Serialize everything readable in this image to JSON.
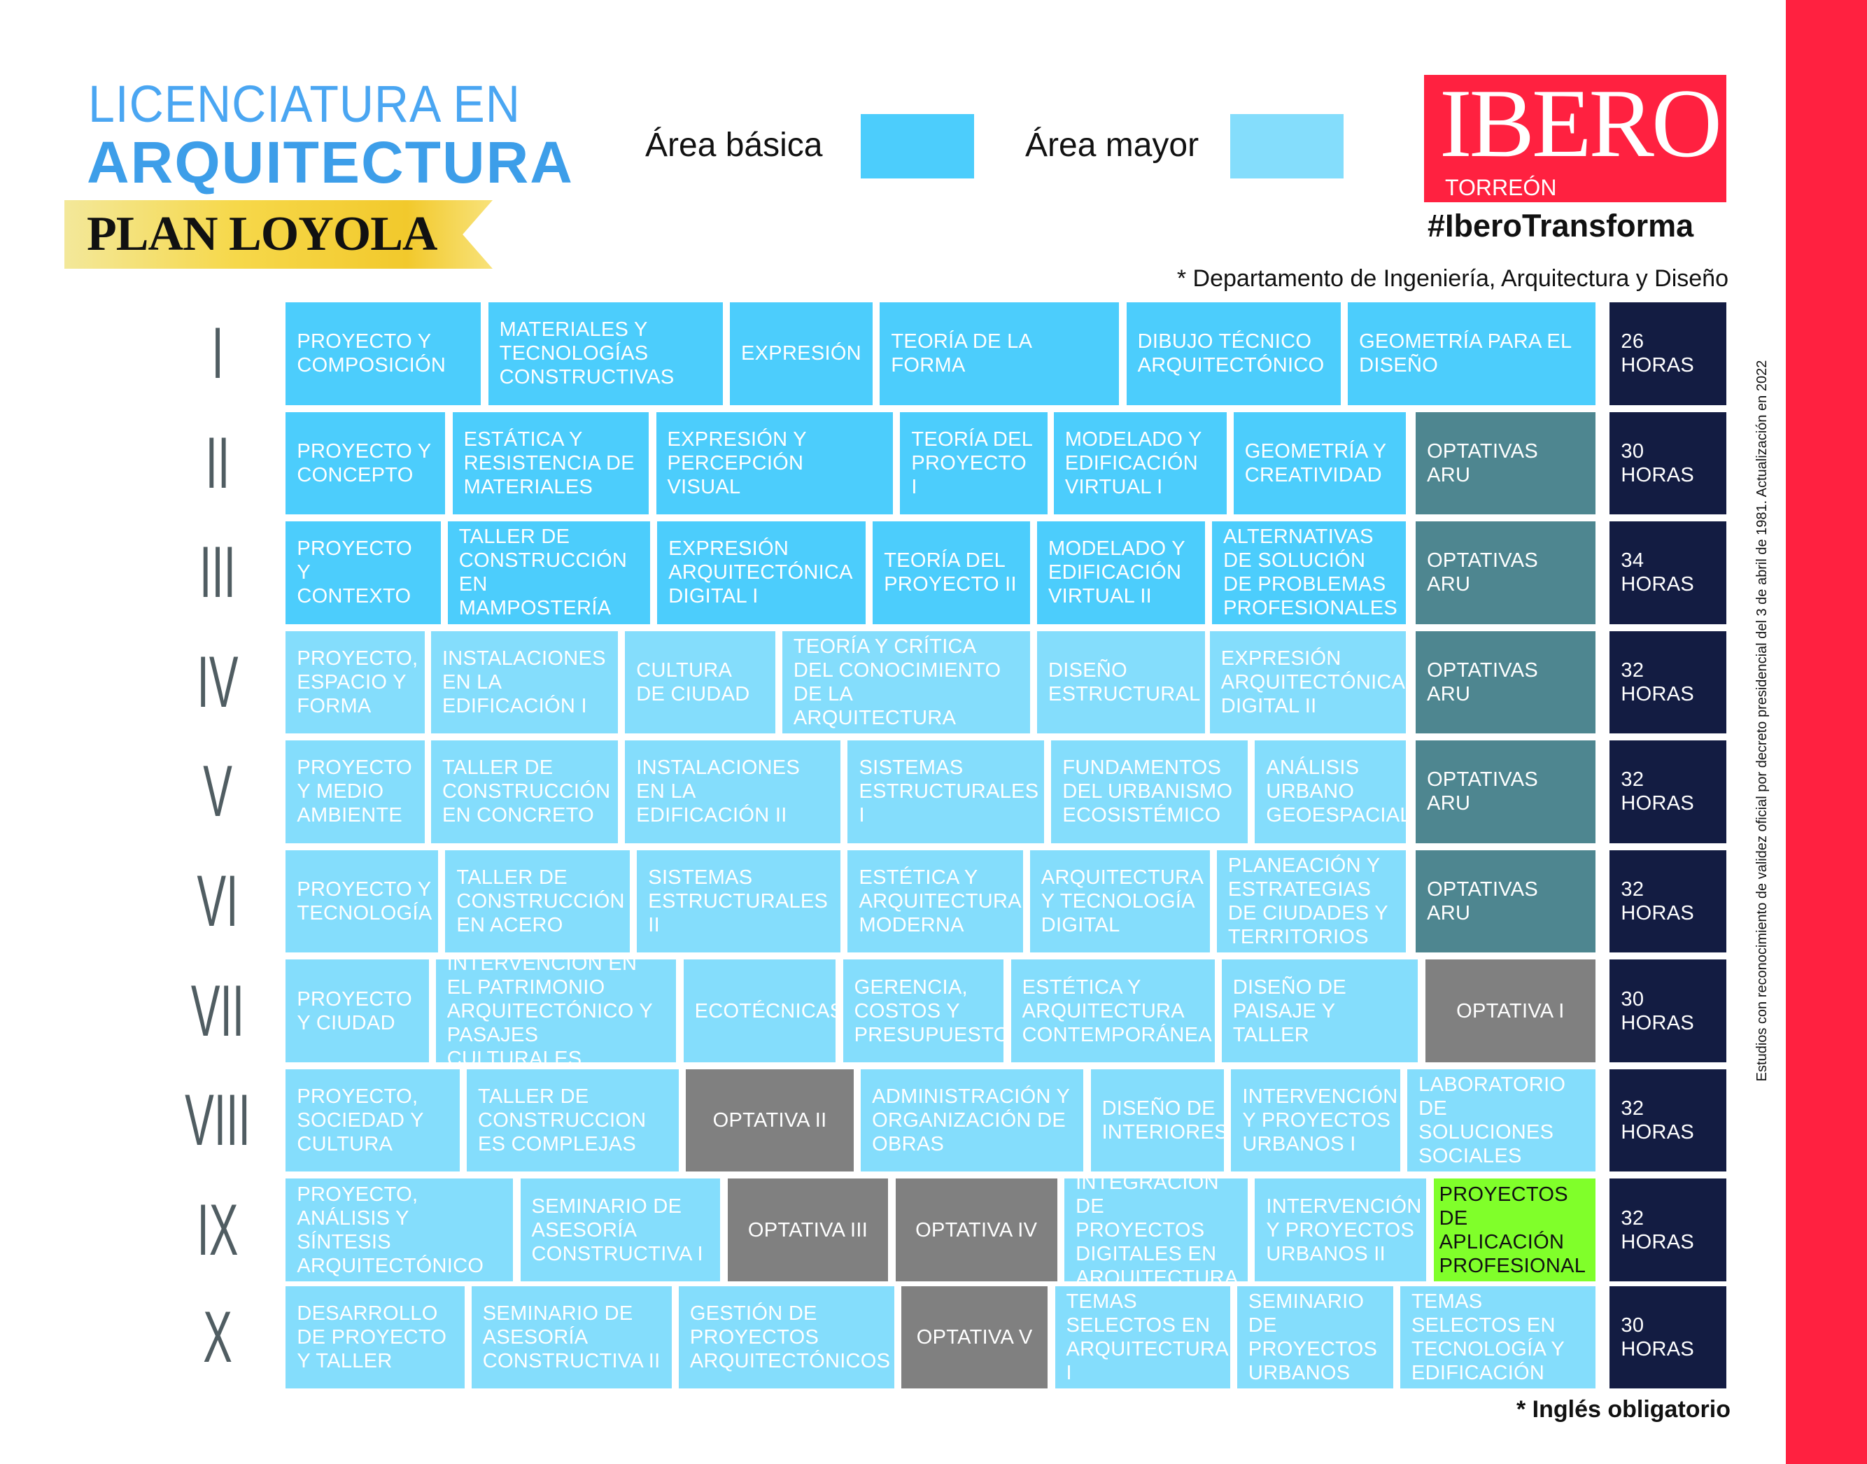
{
  "header": {
    "title_line1": "LICENCIATURA EN",
    "title_line2": "ARQUITECTURA",
    "plan": "PLAN LOYOLA",
    "department_note": "* Departamento de Ingeniería, Arquitectura y Diseño",
    "footer_note": "* Inglés obligatorio",
    "side_note": "Estudios con reconocimiento de validez oficial por decreto presidencial del 3 de abril de 1981. Actualización en 2022"
  },
  "legend": [
    {
      "label": "Área básica",
      "color": "#4ccdfc"
    },
    {
      "label": "Área mayor",
      "color": "#84ddfc"
    }
  ],
  "brand": {
    "name": "IBERO",
    "campus": "TORREÓN",
    "hashtag": "#IberoTransforma",
    "color": "#ff2140"
  },
  "colors": {
    "optativas_aru": "#4e8690",
    "optativa": "#808080",
    "highlight": "#80ff2a",
    "hours": "#131c42"
  },
  "semesters": [
    {
      "numeral": "I",
      "hours": "26 HORAS",
      "courses": [
        {
          "name": "PROYECTO Y COMPOSICIÓN",
          "type": "basic"
        },
        {
          "name": "MATERIALES Y TECNOLOGÍAS CONSTRUCTIVAS",
          "type": "basic"
        },
        {
          "name": "EXPRESIÓN",
          "type": "basic"
        },
        {
          "name": "TEORÍA DE LA FORMA",
          "type": "basic"
        },
        {
          "name": "DIBUJO TÉCNICO ARQUITECTÓNICO",
          "type": "basic"
        },
        {
          "name": "GEOMETRÍA PARA EL DISEÑO",
          "type": "basic"
        }
      ]
    },
    {
      "numeral": "II",
      "hours": "30 HORAS",
      "courses": [
        {
          "name": "PROYECTO Y CONCEPTO",
          "type": "basic"
        },
        {
          "name": "ESTÁTICA Y RESISTENCIA DE MATERIALES",
          "type": "basic"
        },
        {
          "name": "EXPRESIÓN Y PERCEPCIÓN VISUAL",
          "type": "basic"
        },
        {
          "name": "TEORÍA DEL PROYECTO I",
          "type": "basic"
        },
        {
          "name": "MODELADO Y EDIFICACIÓN VIRTUAL I",
          "type": "basic"
        },
        {
          "name": "GEOMETRÍA Y CREATIVIDAD",
          "type": "basic"
        },
        {
          "name": "OPTATIVAS ARU",
          "type": "aru"
        }
      ]
    },
    {
      "numeral": "III",
      "hours": "34 HORAS",
      "courses": [
        {
          "name": "PROYECTO Y CONTEXTO",
          "type": "basic"
        },
        {
          "name": "TALLER DE CONSTRUCCIÓN EN MAMPOSTERÍA",
          "type": "basic"
        },
        {
          "name": "EXPRESIÓN ARQUITECTÓNICA DIGITAL I",
          "type": "basic"
        },
        {
          "name": "TEORÍA DEL PROYECTO II",
          "type": "basic"
        },
        {
          "name": "MODELADO Y EDIFICACIÓN VIRTUAL II",
          "type": "basic"
        },
        {
          "name": "ALTERNATIVAS DE SOLUCIÓN DE PROBLEMAS PROFESIONALES",
          "type": "basic"
        },
        {
          "name": "OPTATIVAS ARU",
          "type": "aru"
        }
      ]
    },
    {
      "numeral": "IV",
      "hours": "32 HORAS",
      "courses": [
        {
          "name": "PROYECTO, ESPACIO Y FORMA",
          "type": "major"
        },
        {
          "name": "INSTALACIONES EN LA EDIFICACIÓN I",
          "type": "major"
        },
        {
          "name": "CULTURA DE CIUDAD",
          "type": "major"
        },
        {
          "name": "TEORÍA Y CRÍTICA DEL CONOCIMIENTO DE LA ARQUITECTURA",
          "type": "major"
        },
        {
          "name": "DISEÑO ESTRUCTURAL",
          "type": "major"
        },
        {
          "name": "EXPRESIÓN ARQUITECTÓNICA DIGITAL II",
          "type": "major"
        },
        {
          "name": "OPTATIVAS ARU",
          "type": "aru"
        }
      ]
    },
    {
      "numeral": "V",
      "hours": "32 HORAS",
      "courses": [
        {
          "name": "PROYECTO Y MEDIO AMBIENTE",
          "type": "major"
        },
        {
          "name": "TALLER DE CONSTRUCCIÓN EN CONCRETO",
          "type": "major"
        },
        {
          "name": "INSTALACIONES EN LA EDIFICACIÓN II",
          "type": "major"
        },
        {
          "name": "SISTEMAS ESTRUCTURALES I",
          "type": "major"
        },
        {
          "name": "FUNDAMENTOS DEL URBANISMO ECOSISTÉMICO",
          "type": "major"
        },
        {
          "name": "ANÁLISIS URBANO GEOESPACIAL",
          "type": "major"
        },
        {
          "name": "OPTATIVAS ARU",
          "type": "aru"
        }
      ]
    },
    {
      "numeral": "VI",
      "hours": "32 HORAS",
      "courses": [
        {
          "name": "PROYECTO Y TECNOLOGÍA",
          "type": "major"
        },
        {
          "name": "TALLER DE CONSTRUCCIÓN EN ACERO",
          "type": "major"
        },
        {
          "name": "SISTEMAS ESTRUCTURALES II",
          "type": "major"
        },
        {
          "name": "ESTÉTICA Y ARQUITECTURA MODERNA",
          "type": "major"
        },
        {
          "name": "ARQUITECTURA Y TECNOLOGÍA DIGITAL",
          "type": "major"
        },
        {
          "name": "PLANEACIÓN Y ESTRATEGIAS DE CIUDADES Y TERRITORIOS",
          "type": "major"
        },
        {
          "name": "OPTATIVAS ARU",
          "type": "aru"
        }
      ]
    },
    {
      "numeral": "VII",
      "hours": "30 HORAS",
      "courses": [
        {
          "name": "PROYECTO Y CIUDAD",
          "type": "major"
        },
        {
          "name": "INTERVENCIÓN EN EL PATRIMONIO ARQUITECTÓNICO Y PASAJES CULTURALES",
          "type": "major"
        },
        {
          "name": "ECOTÉCNICAS",
          "type": "major"
        },
        {
          "name": "GERENCIA, COSTOS Y PRESUPUESTOS",
          "type": "major"
        },
        {
          "name": "ESTÉTICA Y ARQUITECTURA CONTEMPORÁNEA",
          "type": "major"
        },
        {
          "name": "DISEÑO DE PAISAJE Y TALLER",
          "type": "major"
        },
        {
          "name": "OPTATIVA I",
          "type": "opt"
        }
      ]
    },
    {
      "numeral": "VIII",
      "hours": "32 HORAS",
      "courses": [
        {
          "name": "PROYECTO, SOCIEDAD Y CULTURA",
          "type": "major"
        },
        {
          "name": "TALLER DE CONSTRUCCION ES COMPLEJAS",
          "type": "major"
        },
        {
          "name": "OPTATIVA II",
          "type": "opt"
        },
        {
          "name": "ADMINISTRACIÓN Y ORGANIZACIÓN DE OBRAS",
          "type": "major"
        },
        {
          "name": "DISEÑO DE INTERIORES",
          "type": "major"
        },
        {
          "name": "INTERVENCIÓN Y PROYECTOS URBANOS I",
          "type": "major"
        },
        {
          "name": "LABORATORIO DE SOLUCIONES SOCIALES",
          "type": "major"
        }
      ]
    },
    {
      "numeral": "IX",
      "hours": "32 HORAS",
      "courses": [
        {
          "name": "PROYECTO, ANÁLISIS Y SÍNTESIS ARQUITECTÓNICO",
          "type": "major"
        },
        {
          "name": "SEMINARIO DE ASESORÍA CONSTRUCTIVA I",
          "type": "major"
        },
        {
          "name": "OPTATIVA III",
          "type": "opt"
        },
        {
          "name": "OPTATIVA IV",
          "type": "opt"
        },
        {
          "name": "INTEGRACIÓN DE PROYECTOS DIGITALES EN ARQUITECTURA",
          "type": "major"
        },
        {
          "name": "INTERVENCIÓN Y PROYECTOS URBANOS II",
          "type": "major"
        },
        {
          "name": "PROYECTOS DE APLICACIÓN PROFESIONAL",
          "type": "green"
        }
      ]
    },
    {
      "numeral": "X",
      "hours": "30 HORAS",
      "courses": [
        {
          "name": "DESARROLLO DE PROYECTO Y TALLER",
          "type": "major"
        },
        {
          "name": "SEMINARIO DE ASESORÍA CONSTRUCTIVA II",
          "type": "major"
        },
        {
          "name": "GESTIÓN DE PROYECTOS ARQUITECTÓNICOS",
          "type": "major"
        },
        {
          "name": "OPTATIVA V",
          "type": "opt"
        },
        {
          "name": "TEMAS SELECTOS EN ARQUITECTURA I",
          "type": "major"
        },
        {
          "name": "SEMINARIO DE PROYECTOS URBANOS",
          "type": "major"
        },
        {
          "name": "TEMAS SELECTOS EN TECNOLOGÍA Y EDIFICACIÓN",
          "type": "major"
        }
      ]
    }
  ]
}
